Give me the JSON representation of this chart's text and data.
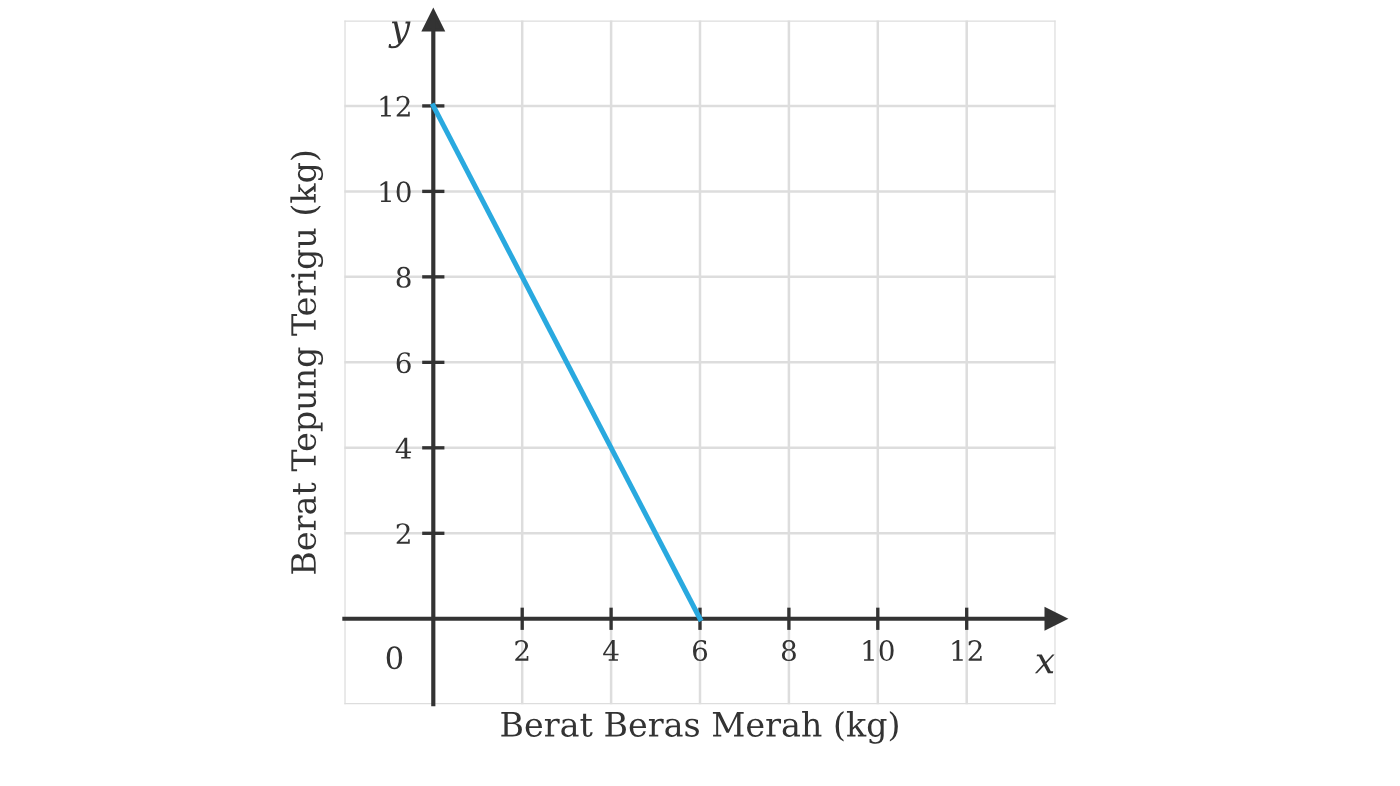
{
  "chart_data": {
    "type": "line",
    "xlabel": "Berat Beras Merah (kg)",
    "ylabel": "Berat Tepung Terigu (kg)",
    "x": [
      0,
      6
    ],
    "series": [
      {
        "color": "#29a9df",
        "values": [
          12,
          0
        ]
      }
    ],
    "xlim": [
      -2,
      14
    ],
    "ylim": [
      -2,
      14
    ],
    "xticks": [
      2,
      4,
      6,
      8,
      10,
      12
    ],
    "yticks": [
      2,
      4,
      6,
      8,
      10,
      12
    ],
    "grid": true,
    "marker": "none",
    "line_style": "solid",
    "annotations": [
      "x",
      "y",
      "0"
    ]
  }
}
